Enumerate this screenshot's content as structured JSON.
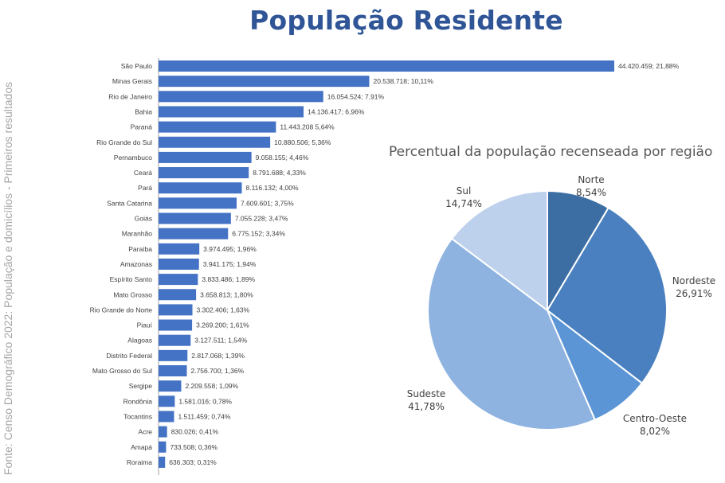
{
  "header": {
    "title": "População Residente",
    "source": "Fonte: Censo Demográfico 2022: População e domicílios - Primeiros resultados"
  },
  "colors": {
    "title": "#2f5597",
    "bar": "#4472c4",
    "pie": [
      "#3c6ea4",
      "#4a80c0",
      "#5b95d6",
      "#8fb3e0",
      "#bdd0ec"
    ]
  },
  "chart_data": [
    {
      "type": "bar",
      "orientation": "horizontal",
      "title": "",
      "categories": [
        "São Paulo",
        "Minas Gerais",
        "Rio de Janeiro",
        "Bahia",
        "Paraná",
        "Rio Grande do Sul",
        "Pernambuco",
        "Ceará",
        "Pará",
        "Santa Catarina",
        "Goiás",
        "Maranhão",
        "Paraíba",
        "Amazonas",
        "Espírito Santo",
        "Mato Grosso",
        "Rio Grande do Norte",
        "Piauí",
        "Alagoas",
        "Distrito Federal",
        "Mato Grosso do Sul",
        "Sergipe",
        "Rondônia",
        "Tocantins",
        "Acre",
        "Amapá",
        "Roraima"
      ],
      "values": [
        44420459,
        20538718,
        16054524,
        14136417,
        11443208,
        10880506,
        9058155,
        8791688,
        8116132,
        7609601,
        7055228,
        6775152,
        3974495,
        3941175,
        3833486,
        3658813,
        3302406,
        3269200,
        3127511,
        2817068,
        2756700,
        2209558,
        1581016,
        1511459,
        830026,
        733508,
        636303
      ],
      "labels": [
        "44.420.459; 21,88%",
        "20.538.718; 10,11%",
        "16.054.524; 7,91%",
        "14.136.417; 6,96%",
        "11.443.208 5,64%",
        "10.880.506; 5,36%",
        "9.058.155; 4,46%",
        "8.791.688; 4,33%",
        "8.116.132; 4,00%",
        "7.609.601; 3,75%",
        "7.055.228; 3,47%",
        "6.775.152; 3,34%",
        "3.974.495; 1,96%",
        "3.941.175; 1,94%",
        "3.833.486; 1,89%",
        "3.658.813; 1,80%",
        "3.302.406; 1,63%",
        "3.269.200; 1,61%",
        "3.127.511; 1,54%",
        "2.817.068; 1,39%",
        "2.756.700; 1,36%",
        "2.209.558; 1,09%",
        "1.581.016; 0,78%",
        "1.511.459; 0,74%",
        "830.026; 0,41%",
        "733.508; 0,36%",
        "636.303; 0,31%"
      ],
      "xlim": [
        0,
        44420459
      ]
    },
    {
      "type": "pie",
      "title": "Percentual da população recenseada por região",
      "slices": [
        {
          "label": "Norte",
          "value": 8.54,
          "text": "8,54%"
        },
        {
          "label": "Nordeste",
          "value": 26.91,
          "text": "26,91%"
        },
        {
          "label": "Centro-Oeste",
          "value": 8.02,
          "text": "8,02%"
        },
        {
          "label": "Sudeste",
          "value": 41.78,
          "text": "41,78%"
        },
        {
          "label": "Sul",
          "value": 14.74,
          "text": "14,74%"
        }
      ],
      "start_angle": "12 o'clock",
      "direction": "clockwise"
    }
  ]
}
